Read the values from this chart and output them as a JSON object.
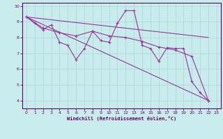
{
  "xlabel": "Windchill (Refroidissement éolien,°C)",
  "bg_color": "#c8ecec",
  "line_color": "#993399",
  "grid_color": "#b0d8d8",
  "axis_color": "#660066",
  "xlim": [
    -0.5,
    23.5
  ],
  "ylim": [
    3.5,
    10.2
  ],
  "xticks": [
    0,
    1,
    2,
    3,
    4,
    5,
    6,
    7,
    8,
    9,
    10,
    11,
    12,
    13,
    14,
    15,
    16,
    17,
    18,
    19,
    20,
    21,
    22,
    23
  ],
  "yticks": [
    4,
    5,
    6,
    7,
    8,
    9,
    10
  ],
  "line0": [
    [
      0,
      9.3
    ],
    [
      1,
      8.9
    ],
    [
      2,
      8.5
    ],
    [
      3,
      8.8
    ],
    [
      4,
      7.7
    ],
    [
      5,
      7.5
    ],
    [
      6,
      6.6
    ],
    [
      7,
      7.3
    ],
    [
      8,
      8.4
    ],
    [
      9,
      7.8
    ],
    [
      10,
      7.7
    ],
    [
      11,
      8.9
    ],
    [
      12,
      9.7
    ],
    [
      13,
      9.7
    ],
    [
      14,
      7.5
    ],
    [
      15,
      7.3
    ],
    [
      16,
      6.5
    ],
    [
      17,
      7.35
    ],
    [
      18,
      7.3
    ],
    [
      19,
      7.3
    ],
    [
      20,
      5.2
    ],
    [
      21,
      4.5
    ],
    [
      22,
      4.0
    ]
  ],
  "line1": [
    [
      0,
      9.3
    ],
    [
      2,
      8.6
    ],
    [
      4,
      8.3
    ],
    [
      6,
      8.1
    ],
    [
      8,
      8.4
    ],
    [
      10,
      8.1
    ],
    [
      12,
      8.0
    ],
    [
      14,
      7.75
    ],
    [
      16,
      7.4
    ],
    [
      18,
      7.2
    ],
    [
      20,
      6.8
    ],
    [
      22,
      4.0
    ]
  ],
  "line2": [
    [
      0,
      9.3
    ],
    [
      22,
      8.0
    ]
  ],
  "line3": [
    [
      0,
      9.3
    ],
    [
      22,
      4.0
    ]
  ]
}
